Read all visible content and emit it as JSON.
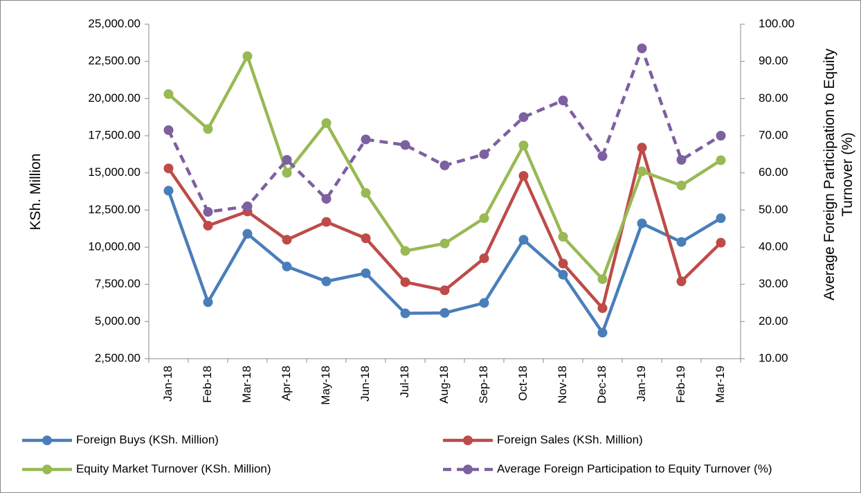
{
  "chart_data": {
    "type": "line",
    "ylabel": "KSh. Million",
    "y2label": "Average Foreign Participation to Equity Turnover (%)",
    "categories": [
      "Jan-18",
      "Feb-18",
      "Mar-18",
      "Apr-18",
      "May-18",
      "Jun-18",
      "Jul-18",
      "Aug-18",
      "Sep-18",
      "Oct-18",
      "Nov-18",
      "Dec-18",
      "Jan-19",
      "Feb-19",
      "Mar-19"
    ],
    "series": [
      {
        "name": "Foreign Buys (KSh. Million)",
        "color": "#4a7ebb",
        "values": [
          13800,
          6300,
          10900,
          8700,
          7700,
          8250,
          5550,
          5580,
          6250,
          10500,
          8150,
          4250,
          11600,
          10350,
          11950
        ]
      },
      {
        "name": "Foreign Sales (KSh. Million)",
        "color": "#be4b48",
        "values": [
          15300,
          11450,
          12400,
          10500,
          11700,
          10600,
          7650,
          7100,
          9250,
          14800,
          8900,
          5900,
          16700,
          7700,
          10300
        ]
      },
      {
        "name": "Equity Market Turnover (KSh. Million)",
        "color": "#98b954",
        "values": [
          20300,
          17950,
          22850,
          15000,
          18350,
          13650,
          9750,
          10250,
          11950,
          16850,
          10700,
          7850,
          15100,
          14150,
          15850
        ]
      },
      {
        "name": "Average Foreign Participation to Equity Turnover (%)",
        "color": "#7d60a0",
        "dashed": true,
        "axis": "y2",
        "values": [
          71.5,
          49.5,
          51,
          63.5,
          53,
          69,
          67.5,
          62,
          65,
          75,
          79.5,
          64.5,
          93.5,
          63.5,
          70
        ]
      }
    ],
    "ylim": [
      2500,
      25000
    ],
    "yticks": [
      {
        "value": 2500,
        "label": "2,500.00"
      },
      {
        "value": 5000,
        "label": "5,000.00"
      },
      {
        "value": 7500,
        "label": "7,500.00"
      },
      {
        "value": 10000,
        "label": "10,000.00"
      },
      {
        "value": 12500,
        "label": "12,500.00"
      },
      {
        "value": 15000,
        "label": "15,000.00"
      },
      {
        "value": 17500,
        "label": "17,500.00"
      },
      {
        "value": 20000,
        "label": "20,000.00"
      },
      {
        "value": 22500,
        "label": "22,500.00"
      },
      {
        "value": 25000,
        "label": "25,000.00"
      }
    ],
    "y2lim": [
      10,
      100
    ],
    "y2ticks": [
      {
        "value": 10,
        "label": "10.00"
      },
      {
        "value": 20,
        "label": "20.00"
      },
      {
        "value": 30,
        "label": "30.00"
      },
      {
        "value": 40,
        "label": "40.00"
      },
      {
        "value": 50,
        "label": "50.00"
      },
      {
        "value": 60,
        "label": "60.00"
      },
      {
        "value": 70,
        "label": "70.00"
      },
      {
        "value": 80,
        "label": "80.00"
      },
      {
        "value": 90,
        "label": "90.00"
      },
      {
        "value": 100,
        "label": "100.00"
      }
    ],
    "grid": false,
    "legend": "bottom"
  }
}
